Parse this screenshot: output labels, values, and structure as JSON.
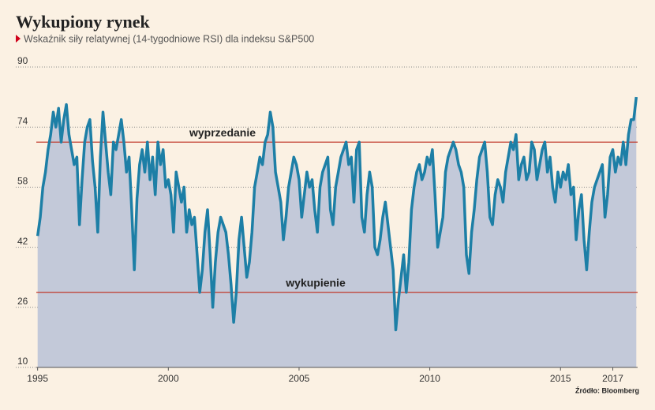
{
  "chart_data": {
    "type": "area",
    "title": "Wykupiony rynek",
    "subtitle": "Wskaźnik siły relatywnej (14-tygodniowe RSI) dla indeksu S&P500",
    "source": "Źródło: Bloomberg",
    "line_color": "#1d7fa6",
    "fill_color": "#c3c9d9",
    "reference_color": "#c0392b",
    "reference_lines": [
      {
        "value": 70,
        "label": "wyprzedanie"
      },
      {
        "value": 30,
        "label": "wykupienie"
      }
    ],
    "grid": true,
    "xlim": [
      1994.95,
      2017.95
    ],
    "xticks": [
      1995,
      2000,
      2005,
      2010,
      2015,
      2017
    ],
    "ylim": [
      10,
      90
    ],
    "yticks": [
      10,
      26,
      42,
      58,
      74,
      90
    ],
    "x": [
      1995.0,
      1995.1,
      1995.2,
      1995.3,
      1995.4,
      1995.5,
      1995.6,
      1995.7,
      1995.8,
      1995.9,
      1996.0,
      1996.1,
      1996.2,
      1996.3,
      1996.4,
      1996.5,
      1996.6,
      1996.7,
      1996.8,
      1996.9,
      1997.0,
      1997.1,
      1997.2,
      1997.3,
      1997.4,
      1997.5,
      1997.6,
      1997.7,
      1997.8,
      1997.9,
      1998.0,
      1998.1,
      1998.2,
      1998.3,
      1998.4,
      1998.5,
      1998.6,
      1998.7,
      1998.8,
      1998.9,
      1999.0,
      1999.1,
      1999.2,
      1999.3,
      1999.4,
      1999.5,
      1999.6,
      1999.7,
      1999.8,
      1999.9,
      2000.0,
      2000.1,
      2000.2,
      2000.3,
      2000.4,
      2000.5,
      2000.6,
      2000.7,
      2000.8,
      2000.9,
      2001.0,
      2001.1,
      2001.2,
      2001.3,
      2001.4,
      2001.5,
      2001.6,
      2001.7,
      2001.8,
      2001.9,
      2002.0,
      2002.1,
      2002.2,
      2002.3,
      2002.4,
      2002.5,
      2002.6,
      2002.7,
      2002.8,
      2002.9,
      2003.0,
      2003.1,
      2003.2,
      2003.3,
      2003.4,
      2003.5,
      2003.6,
      2003.7,
      2003.8,
      2003.9,
      2004.0,
      2004.1,
      2004.2,
      2004.3,
      2004.4,
      2004.5,
      2004.6,
      2004.7,
      2004.8,
      2004.9,
      2005.0,
      2005.1,
      2005.2,
      2005.3,
      2005.4,
      2005.5,
      2005.6,
      2005.7,
      2005.8,
      2005.9,
      2006.0,
      2006.1,
      2006.2,
      2006.3,
      2006.4,
      2006.5,
      2006.6,
      2006.7,
      2006.8,
      2006.9,
      2007.0,
      2007.1,
      2007.2,
      2007.3,
      2007.4,
      2007.5,
      2007.6,
      2007.7,
      2007.8,
      2007.9,
      2008.0,
      2008.1,
      2008.2,
      2008.3,
      2008.4,
      2008.5,
      2008.6,
      2008.7,
      2008.8,
      2008.9,
      2009.0,
      2009.1,
      2009.2,
      2009.3,
      2009.4,
      2009.5,
      2009.6,
      2009.7,
      2009.8,
      2009.9,
      2010.0,
      2010.1,
      2010.2,
      2010.3,
      2010.4,
      2010.5,
      2010.6,
      2010.7,
      2010.8,
      2010.9,
      2011.0,
      2011.1,
      2011.2,
      2011.3,
      2011.4,
      2011.5,
      2011.6,
      2011.7,
      2011.8,
      2011.9,
      2012.0,
      2012.1,
      2012.2,
      2012.3,
      2012.4,
      2012.5,
      2012.6,
      2012.7,
      2012.8,
      2012.9,
      2013.0,
      2013.1,
      2013.2,
      2013.3,
      2013.4,
      2013.5,
      2013.6,
      2013.7,
      2013.8,
      2013.9,
      2014.0,
      2014.1,
      2014.2,
      2014.3,
      2014.4,
      2014.5,
      2014.6,
      2014.7,
      2014.8,
      2014.9,
      2015.0,
      2015.1,
      2015.2,
      2015.3,
      2015.4,
      2015.5,
      2015.6,
      2015.7,
      2015.8,
      2015.9,
      2016.0,
      2016.1,
      2016.2,
      2016.3,
      2016.4,
      2016.5,
      2016.6,
      2016.7,
      2016.8,
      2016.9,
      2017.0,
      2017.1,
      2017.2,
      2017.3,
      2017.4,
      2017.5,
      2017.6,
      2017.7,
      2017.8,
      2017.9
    ],
    "values": [
      45,
      50,
      58,
      62,
      68,
      72,
      78,
      74,
      79,
      70,
      76,
      80,
      72,
      68,
      64,
      66,
      48,
      60,
      70,
      74,
      76,
      65,
      58,
      46,
      66,
      78,
      70,
      62,
      56,
      70,
      68,
      72,
      76,
      70,
      62,
      66,
      52,
      36,
      55,
      64,
      68,
      62,
      70,
      60,
      66,
      56,
      70,
      64,
      68,
      58,
      60,
      56,
      46,
      62,
      58,
      54,
      58,
      46,
      52,
      48,
      50,
      40,
      30,
      36,
      46,
      52,
      40,
      26,
      38,
      46,
      50,
      48,
      46,
      40,
      32,
      22,
      30,
      44,
      50,
      42,
      34,
      38,
      46,
      58,
      62,
      66,
      64,
      70,
      72,
      78,
      74,
      62,
      58,
      54,
      44,
      50,
      58,
      62,
      66,
      64,
      60,
      50,
      56,
      62,
      58,
      60,
      52,
      46,
      58,
      62,
      64,
      66,
      52,
      48,
      58,
      62,
      66,
      68,
      70,
      64,
      66,
      54,
      68,
      70,
      50,
      46,
      56,
      62,
      58,
      42,
      40,
      44,
      50,
      54,
      48,
      42,
      36,
      20,
      28,
      34,
      40,
      30,
      38,
      52,
      58,
      62,
      64,
      60,
      62,
      66,
      64,
      68,
      56,
      42,
      46,
      50,
      62,
      66,
      68,
      70,
      68,
      64,
      62,
      58,
      40,
      35,
      46,
      52,
      60,
      66,
      68,
      70,
      62,
      50,
      48,
      56,
      60,
      58,
      54,
      62,
      66,
      70,
      68,
      72,
      60,
      64,
      66,
      60,
      62,
      70,
      68,
      60,
      64,
      68,
      70,
      62,
      66,
      58,
      54,
      62,
      58,
      62,
      60,
      64,
      56,
      58,
      44,
      52,
      56,
      44,
      36,
      46,
      54,
      58,
      60,
      62,
      64,
      50,
      56,
      66,
      68,
      62,
      66,
      64,
      70,
      64,
      72,
      76,
      76,
      82
    ]
  }
}
